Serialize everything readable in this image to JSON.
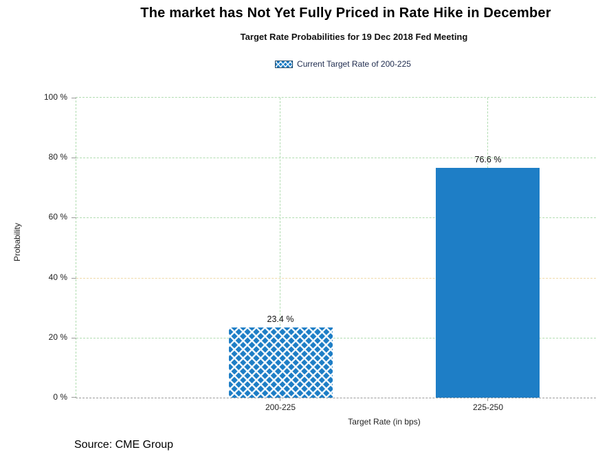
{
  "page": {
    "title": "The market has Not Yet Fully Priced in Rate Hike in December",
    "source": "Source: CME Group"
  },
  "chart_data": {
    "type": "bar",
    "title": "Target Rate Probabilities for 19 Dec 2018 Fed Meeting",
    "categories": [
      "200-225",
      "225-250"
    ],
    "values": [
      23.4,
      76.6
    ],
    "value_labels": [
      "23.4 %",
      "76.6 %"
    ],
    "xlabel": "Target Rate (in bps)",
    "ylabel": "Probability",
    "ylim": [
      0,
      100
    ],
    "ytick_labels": [
      "100 %",
      "80 %",
      "60 %",
      "40 %",
      "20 %",
      "0 %"
    ],
    "grid": true,
    "legend_position": "top-center",
    "legend": [
      {
        "label": "Current Target Rate of 200-225",
        "swatch": "crosshatch-blue"
      }
    ],
    "bar_styles": [
      "crosshatch",
      "solid"
    ]
  },
  "colors": {
    "bar_blue": "#1e7ec6",
    "grid_green": "#b0dcb0",
    "grid_highlight_40pct": "#efd9a7",
    "axis_gray": "#9a9a9a",
    "legend_text": "#1d2a4d"
  }
}
